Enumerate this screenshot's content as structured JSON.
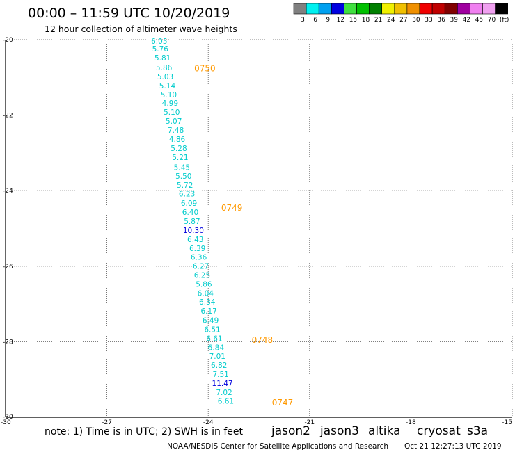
{
  "header": {
    "title": "00:00 – 11:59 UTC 10/20/2019",
    "subtitle": "12 hour collection of altimeter wave heights"
  },
  "colorbar": {
    "colors": [
      "#808080",
      "#00f0f0",
      "#00a0f0",
      "#0000e0",
      "#40e040",
      "#00c000",
      "#008000",
      "#f0f000",
      "#f0c000",
      "#f09000",
      "#f00000",
      "#c00000",
      "#800000",
      "#a000a0",
      "#f080f0",
      "#f0a0f0",
      "#000000"
    ],
    "labels": [
      "3",
      "6",
      "9",
      "12",
      "15",
      "18",
      "21",
      "24",
      "27",
      "30",
      "33",
      "36",
      "39",
      "42",
      "45",
      "70",
      "(ft)"
    ]
  },
  "footer": {
    "note": "note: 1) Time is in UTC; 2) SWH is in feet",
    "credit": "NOAA/NESDIS Center for Satellite Applications and Research",
    "timestamp": "Oct 21 12:27:13 UTC 2019"
  },
  "legend": [
    {
      "name": "jason2",
      "color": "#0000e0"
    },
    {
      "name": "jason3",
      "color": "#00a000"
    },
    {
      "name": "altika",
      "color": "#ff9900"
    },
    {
      "name": "cryosat",
      "color": "#e00000"
    },
    {
      "name": "s3a",
      "color": "#a00000"
    }
  ],
  "chart_data": {
    "type": "scatter",
    "title": "00:00 – 11:59 UTC 10/20/2019",
    "xlim": [
      -30,
      -15
    ],
    "ylim": [
      -30,
      -20
    ],
    "xticks": [
      "-30",
      "-27",
      "-24",
      "-21",
      "-18",
      "-15"
    ],
    "yticks": [
      "-20",
      "-22",
      "-24",
      "-26",
      "-28",
      "-30"
    ],
    "grid": true,
    "points": [
      {
        "lon": -25.45,
        "lat": -20.11,
        "label": "6.05",
        "color": "#00cccc"
      },
      {
        "lon": -25.42,
        "lat": -20.31,
        "label": "5.76",
        "color": "#00cccc"
      },
      {
        "lon": -25.35,
        "lat": -20.55,
        "label": "5.81",
        "color": "#00cccc"
      },
      {
        "lon": -25.31,
        "lat": -20.81,
        "label": "5.86",
        "color": "#00cccc"
      },
      {
        "lon": -25.27,
        "lat": -21.05,
        "label": "5.03",
        "color": "#00cccc"
      },
      {
        "lon": -25.21,
        "lat": -21.29,
        "label": "5.14",
        "color": "#00cccc"
      },
      {
        "lon": -25.17,
        "lat": -21.53,
        "label": "5.10",
        "color": "#00cccc"
      },
      {
        "lon": -25.13,
        "lat": -21.75,
        "label": "4.99",
        "color": "#00cccc"
      },
      {
        "lon": -25.08,
        "lat": -21.99,
        "label": "5.10",
        "color": "#00cccc"
      },
      {
        "lon": -25.02,
        "lat": -22.23,
        "label": "5.07",
        "color": "#00cccc"
      },
      {
        "lon": -24.96,
        "lat": -22.47,
        "label": "7.48",
        "color": "#00cccc"
      },
      {
        "lon": -24.92,
        "lat": -22.71,
        "label": "4.86",
        "color": "#00cccc"
      },
      {
        "lon": -24.87,
        "lat": -22.95,
        "label": "5.28",
        "color": "#00cccc"
      },
      {
        "lon": -24.83,
        "lat": -23.19,
        "label": "5.21",
        "color": "#00cccc"
      },
      {
        "lon": -24.78,
        "lat": -23.45,
        "label": "5.45",
        "color": "#00cccc"
      },
      {
        "lon": -24.73,
        "lat": -23.68,
        "label": "5.50",
        "color": "#00cccc"
      },
      {
        "lon": -24.69,
        "lat": -23.92,
        "label": "5.72",
        "color": "#00cccc"
      },
      {
        "lon": -24.63,
        "lat": -24.15,
        "label": "6.23",
        "color": "#00cccc"
      },
      {
        "lon": -24.57,
        "lat": -24.4,
        "label": "6.09",
        "color": "#00cccc"
      },
      {
        "lon": -24.53,
        "lat": -24.64,
        "label": "6.40",
        "color": "#00cccc"
      },
      {
        "lon": -24.48,
        "lat": -24.88,
        "label": "5.87",
        "color": "#00cccc"
      },
      {
        "lon": -24.44,
        "lat": -25.12,
        "label": "10.30",
        "color": "#0000dd"
      },
      {
        "lon": -24.38,
        "lat": -25.36,
        "label": "6.43",
        "color": "#00cccc"
      },
      {
        "lon": -24.32,
        "lat": -25.6,
        "label": "6.39",
        "color": "#00cccc"
      },
      {
        "lon": -24.28,
        "lat": -25.83,
        "label": "6.36",
        "color": "#00cccc"
      },
      {
        "lon": -24.22,
        "lat": -26.07,
        "label": "6.27",
        "color": "#00cccc"
      },
      {
        "lon": -24.18,
        "lat": -26.31,
        "label": "6.25",
        "color": "#00cccc"
      },
      {
        "lon": -24.13,
        "lat": -26.55,
        "label": "5.86",
        "color": "#00cccc"
      },
      {
        "lon": -24.08,
        "lat": -26.79,
        "label": "6.04",
        "color": "#00cccc"
      },
      {
        "lon": -24.03,
        "lat": -27.02,
        "label": "6.34",
        "color": "#00cccc"
      },
      {
        "lon": -23.98,
        "lat": -27.26,
        "label": "6.17",
        "color": "#00cccc"
      },
      {
        "lon": -23.93,
        "lat": -27.5,
        "label": "6.49",
        "color": "#00cccc"
      },
      {
        "lon": -23.88,
        "lat": -27.74,
        "label": "6.51",
        "color": "#00cccc"
      },
      {
        "lon": -23.82,
        "lat": -27.98,
        "label": "6.61",
        "color": "#00cccc"
      },
      {
        "lon": -23.77,
        "lat": -28.22,
        "label": "6.84",
        "color": "#00cccc"
      },
      {
        "lon": -23.73,
        "lat": -28.45,
        "label": "7.01",
        "color": "#00cccc"
      },
      {
        "lon": -23.68,
        "lat": -28.69,
        "label": "6.82",
        "color": "#00cccc"
      },
      {
        "lon": -23.63,
        "lat": -28.93,
        "label": "7.51",
        "color": "#00cccc"
      },
      {
        "lon": -23.58,
        "lat": -29.17,
        "label": "11.47",
        "color": "#0000dd"
      },
      {
        "lon": -23.53,
        "lat": -29.41,
        "label": "7.02",
        "color": "#00cccc"
      },
      {
        "lon": -23.48,
        "lat": -29.64,
        "label": "6.61",
        "color": "#00cccc"
      }
    ],
    "annotations": [
      {
        "lon": -24.1,
        "lat": -20.84,
        "label": "0750",
        "color": "#ff9900"
      },
      {
        "lon": -23.3,
        "lat": -24.53,
        "label": "0749",
        "color": "#ff9900"
      },
      {
        "lon": -22.4,
        "lat": -28.03,
        "label": "0748",
        "color": "#ff9900"
      },
      {
        "lon": -21.8,
        "lat": -29.69,
        "label": "0747",
        "color": "#ff9900"
      }
    ]
  }
}
